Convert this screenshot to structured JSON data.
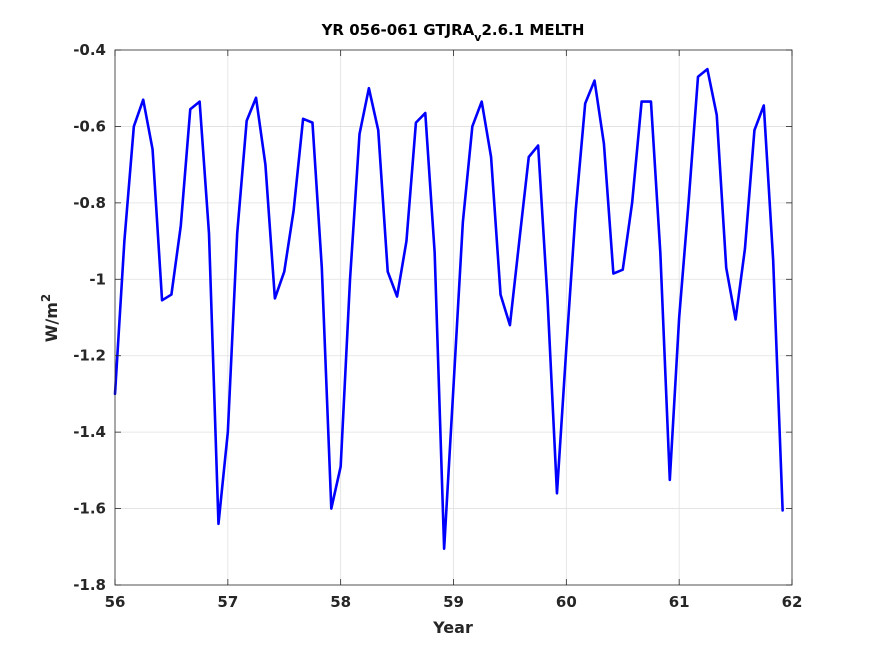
{
  "chart_data": {
    "type": "line",
    "title": {
      "main": "YR 056-061 GTJRA",
      "subscript": "v",
      "rest": "2.6.1 MELTH"
    },
    "xlabel": "Year",
    "ylabel": {
      "base": "W/m",
      "superscript": "2"
    },
    "xlim": [
      56,
      62
    ],
    "ylim": [
      -1.8,
      -0.4
    ],
    "xticks": [
      56,
      57,
      58,
      59,
      60,
      61,
      62
    ],
    "xtick_labels": [
      "56",
      "57",
      "58",
      "59",
      "60",
      "61",
      "62"
    ],
    "yticks": [
      -1.8,
      -1.6,
      -1.4,
      -1.2,
      -1.0,
      -0.8,
      -0.6,
      -0.4
    ],
    "ytick_labels": [
      "-1.8",
      "-1.6",
      "-1.4",
      "-1.2",
      "-1",
      "-0.8",
      "-0.6",
      "-0.4"
    ],
    "grid": true,
    "series": [
      {
        "color": "#0000ff",
        "x": [
          56.0,
          56.083,
          56.167,
          56.25,
          56.333,
          56.417,
          56.5,
          56.583,
          56.667,
          56.75,
          56.833,
          56.917,
          57.0,
          57.083,
          57.167,
          57.25,
          57.333,
          57.417,
          57.5,
          57.583,
          57.667,
          57.75,
          57.833,
          57.917,
          58.0,
          58.083,
          58.167,
          58.25,
          58.333,
          58.417,
          58.5,
          58.583,
          58.667,
          58.75,
          58.833,
          58.917,
          59.0,
          59.083,
          59.167,
          59.25,
          59.333,
          59.417,
          59.5,
          59.583,
          59.667,
          59.75,
          59.833,
          59.917,
          60.0,
          60.083,
          60.167,
          60.25,
          60.333,
          60.417,
          60.5,
          60.583,
          60.667,
          60.75,
          60.833,
          60.917,
          61.0,
          61.083,
          61.167,
          61.25,
          61.333,
          61.417,
          61.5,
          61.583,
          61.667,
          61.75,
          61.833,
          61.917
        ],
        "y": [
          -1.3,
          -0.9,
          -0.6,
          -0.53,
          -0.66,
          -1.055,
          -1.04,
          -0.86,
          -0.555,
          -0.535,
          -0.88,
          -1.64,
          -1.4,
          -0.88,
          -0.585,
          -0.525,
          -0.7,
          -1.05,
          -0.98,
          -0.82,
          -0.58,
          -0.59,
          -0.97,
          -1.6,
          -1.49,
          -1.0,
          -0.62,
          -0.5,
          -0.61,
          -0.98,
          -1.045,
          -0.9,
          -0.59,
          -0.565,
          -0.93,
          -1.705,
          -1.28,
          -0.85,
          -0.6,
          -0.535,
          -0.68,
          -1.04,
          -1.12,
          -0.9,
          -0.68,
          -0.65,
          -1.05,
          -1.56,
          -1.18,
          -0.82,
          -0.54,
          -0.48,
          -0.645,
          -0.985,
          -0.975,
          -0.8,
          -0.535,
          -0.535,
          -0.93,
          -1.525,
          -1.1,
          -0.8,
          -0.47,
          -0.45,
          -0.57,
          -0.97,
          -1.105,
          -0.92,
          -0.61,
          -0.545,
          -0.95,
          -1.605
        ]
      }
    ]
  }
}
